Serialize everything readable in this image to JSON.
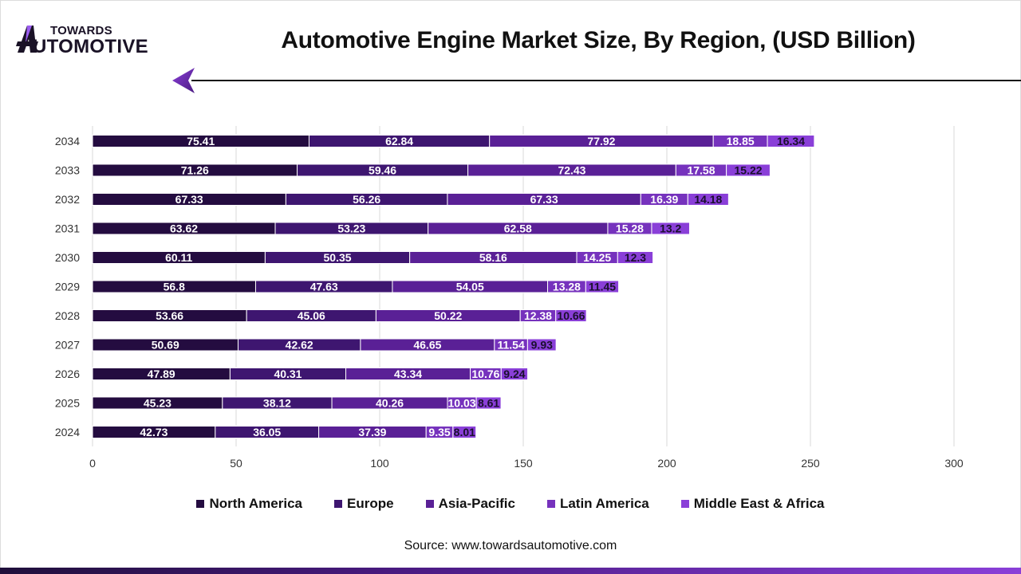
{
  "brand": {
    "line1": "TOWARDS",
    "line2": "UTOMOTIVE"
  },
  "header": {
    "title": "Automotive Engine Market Size, By Region, (USD Billion)"
  },
  "footer": {
    "source": "Source: www.towardsautomotive.com"
  },
  "colors": {
    "north_america": "#240c40",
    "europe": "#3e1670",
    "asia_pacific": "#5a2096",
    "latin_america": "#7632bd",
    "middle_east_africa": "#8a3fd8"
  },
  "chart_data": {
    "type": "bar",
    "orientation": "horizontal",
    "stacked": true,
    "title": "Automotive Engine Market Size, By Region, (USD Billion)",
    "xlabel": "",
    "ylabel": "",
    "xlim": [
      0,
      300
    ],
    "xticks": [
      0,
      50,
      100,
      150,
      200,
      250,
      300
    ],
    "grid": true,
    "legend_position": "bottom",
    "categories": [
      "2034",
      "2033",
      "2032",
      "2031",
      "2030",
      "2029",
      "2028",
      "2027",
      "2026",
      "2025",
      "2024"
    ],
    "series": [
      {
        "name": "North America",
        "color": "#240c40",
        "values": [
          75.41,
          71.26,
          67.33,
          63.62,
          60.11,
          56.8,
          53.66,
          50.69,
          47.89,
          45.23,
          42.73
        ]
      },
      {
        "name": "Europe",
        "color": "#3e1670",
        "values": [
          62.84,
          59.46,
          56.26,
          53.23,
          50.35,
          47.63,
          45.06,
          42.62,
          40.31,
          38.12,
          36.05
        ]
      },
      {
        "name": "Asia-Pacific",
        "color": "#5a2096",
        "values": [
          77.92,
          72.43,
          67.33,
          62.58,
          58.16,
          54.05,
          50.22,
          46.65,
          43.34,
          40.26,
          37.39
        ]
      },
      {
        "name": "Latin America",
        "color": "#7632bd",
        "values": [
          18.85,
          17.58,
          16.39,
          15.28,
          14.25,
          13.28,
          12.38,
          11.54,
          10.76,
          10.03,
          9.35
        ]
      },
      {
        "name": "Middle East & Africa",
        "color": "#8a3fd8",
        "values": [
          16.34,
          15.22,
          14.18,
          13.2,
          12.3,
          11.45,
          10.66,
          9.93,
          9.24,
          8.61,
          8.01
        ]
      }
    ]
  }
}
